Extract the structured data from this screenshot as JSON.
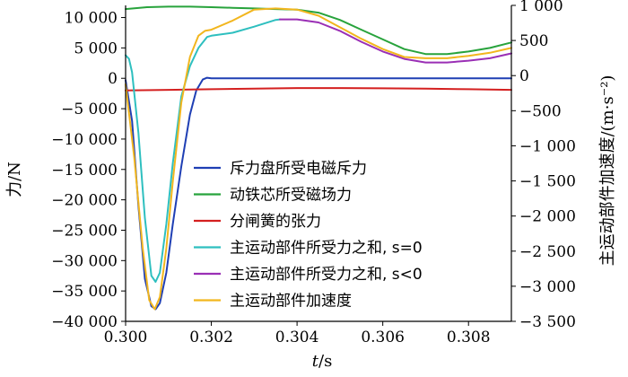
{
  "chart_data": {
    "type": "line",
    "xlabel_italic": "t",
    "xlabel_unit": "/s",
    "ylabel_left": "力/N",
    "ylabel_right": "主运动部件加速度/(m·s⁻²)",
    "xlim": [
      0.3,
      0.309
    ],
    "ylim_left": [
      -40000,
      12000
    ],
    "ylim_right": [
      -3500,
      1000
    ],
    "x_ticks": [
      0.3,
      0.302,
      0.304,
      0.306,
      0.308
    ],
    "x_tick_labels": [
      "0.300",
      "0.302",
      "0.304",
      "0.306",
      "0.308"
    ],
    "y_left_ticks": [
      10000,
      5000,
      0,
      -5000,
      -10000,
      -15000,
      -20000,
      -25000,
      -30000,
      -35000,
      -40000
    ],
    "y_left_tick_labels": [
      "10 000",
      "5 000",
      "0",
      "−5 000",
      "−10 000",
      "−15 000",
      "−20 000",
      "−25 000",
      "−30 000",
      "−35 000",
      "−40 000"
    ],
    "y_right_ticks": [
      1000,
      500,
      0,
      -500,
      -1000,
      -1500,
      -2000,
      -2500,
      -3000,
      -3500
    ],
    "y_right_tick_labels": [
      "1 000",
      "500",
      "0",
      "−500",
      "−1 000",
      "−1 500",
      "−2 000",
      "−2 500",
      "−3 000",
      "−3 500"
    ],
    "legend_position": "center",
    "grid": false,
    "series": [
      {
        "name": "斥力盘所受电磁斥力",
        "color": "#1f3fb4",
        "axis": "left",
        "x": [
          0.3,
          0.30015,
          0.3003,
          0.30045,
          0.3006,
          0.3007,
          0.3008,
          0.30095,
          0.3011,
          0.3013,
          0.3015,
          0.30165,
          0.3018,
          0.3019,
          0.302,
          0.303,
          0.305,
          0.307,
          0.309
        ],
        "y": [
          -300,
          -7000,
          -21000,
          -33000,
          -37500,
          -38000,
          -37000,
          -32000,
          -24000,
          -14500,
          -6000,
          -2000,
          -200,
          100,
          0,
          0,
          0,
          0,
          0
        ]
      },
      {
        "name": "动铁芯所受磁场力",
        "color": "#28a33c",
        "axis": "left",
        "x": [
          0.3,
          0.3005,
          0.301,
          0.3015,
          0.302,
          0.3025,
          0.303,
          0.3035,
          0.304,
          0.3045,
          0.305,
          0.3055,
          0.306,
          0.3065,
          0.307,
          0.3075,
          0.308,
          0.3085,
          0.309
        ],
        "y": [
          11400,
          11700,
          11800,
          11800,
          11700,
          11600,
          11500,
          11400,
          11300,
          10800,
          9600,
          8000,
          6400,
          4800,
          4000,
          4000,
          4400,
          5000,
          5900
        ]
      },
      {
        "name": "分闸簧的张力",
        "color": "#d42020",
        "axis": "left",
        "x": [
          0.3,
          0.301,
          0.302,
          0.303,
          0.304,
          0.305,
          0.306,
          0.307,
          0.308,
          0.309
        ],
        "y": [
          -2000,
          -1900,
          -1800,
          -1700,
          -1600,
          -1600,
          -1650,
          -1700,
          -1800,
          -1900
        ]
      },
      {
        "name": "主运动部件所受力之和, s=0",
        "color": "#2ebfbf",
        "axis": "left",
        "x": [
          0.3,
          0.30008,
          0.30015,
          0.3003,
          0.30045,
          0.3006,
          0.3007,
          0.3008,
          0.30095,
          0.3011,
          0.3013,
          0.3015,
          0.3017,
          0.3019,
          0.302,
          0.3025,
          0.303,
          0.3035,
          0.3036
        ],
        "y": [
          3800,
          3200,
          1000,
          -9000,
          -23000,
          -32500,
          -33500,
          -32000,
          -24000,
          -14000,
          -3000,
          2000,
          5000,
          6800,
          7000,
          7500,
          8500,
          9600,
          9700
        ]
      },
      {
        "name": "主运动部件所受力之和, s<0",
        "color": "#9a2fb5",
        "axis": "left",
        "x": [
          0.3036,
          0.304,
          0.3045,
          0.305,
          0.3055,
          0.306,
          0.3065,
          0.307,
          0.3075,
          0.308,
          0.3085,
          0.309
        ],
        "y": [
          9700,
          9700,
          9200,
          7800,
          6000,
          4400,
          3200,
          2600,
          2600,
          2900,
          3300,
          4100
        ]
      },
      {
        "name": "主运动部件加速度",
        "color": "#f2b61e",
        "axis": "left",
        "x": [
          0.3,
          0.3002,
          0.3004,
          0.30055,
          0.30068,
          0.3008,
          0.30095,
          0.3011,
          0.3013,
          0.3015,
          0.3017,
          0.30185,
          0.302,
          0.3025,
          0.303,
          0.3035,
          0.304,
          0.3045,
          0.305,
          0.3055,
          0.306,
          0.3065,
          0.307,
          0.3075,
          0.308,
          0.3085,
          0.309
        ],
        "y": [
          -1000,
          -13000,
          -28000,
          -36500,
          -38000,
          -36000,
          -28000,
          -17000,
          -4000,
          3500,
          7000,
          7800,
          8000,
          9500,
          11300,
          11500,
          11300,
          10300,
          8400,
          6500,
          4800,
          3500,
          3300,
          3300,
          3700,
          4200,
          5000
        ]
      }
    ]
  }
}
